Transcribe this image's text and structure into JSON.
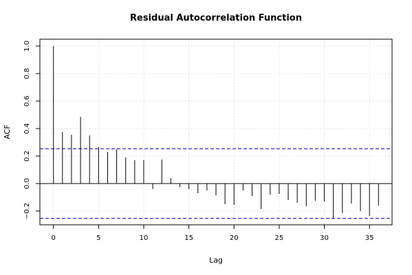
{
  "chart_data": {
    "type": "bar",
    "title": "Residual Autocorrelation Function",
    "xlabel": "Lag",
    "ylabel": "ACF",
    "xlim": [
      -1.5,
      37.5
    ],
    "ylim": [
      -0.3,
      1.05
    ],
    "x_ticks": [
      0,
      5,
      10,
      15,
      20,
      25,
      30,
      35
    ],
    "y_ticks": [
      -0.2,
      0.0,
      0.2,
      0.4,
      0.6,
      0.8,
      1.0
    ],
    "x_tick_labels": [
      "0",
      "5",
      "10",
      "15",
      "20",
      "25",
      "30",
      "35"
    ],
    "y_tick_labels": [
      "−0.2",
      "0.0",
      "0.2",
      "0.4",
      "0.6",
      "0.8",
      "1.0"
    ],
    "grid": true,
    "confidence_bound": 0.253,
    "colors": {
      "bars": "#000000",
      "bounds": "#0000cc",
      "grid": "#d3d3d3",
      "frame": "#000000"
    },
    "lags": [
      0,
      1,
      2,
      3,
      4,
      5,
      6,
      7,
      8,
      9,
      10,
      11,
      12,
      13,
      14,
      15,
      16,
      17,
      18,
      19,
      20,
      21,
      22,
      23,
      24,
      25,
      26,
      27,
      28,
      29,
      30,
      31,
      32,
      33,
      34,
      35,
      36
    ],
    "values": [
      1.0,
      0.375,
      0.355,
      0.485,
      0.35,
      0.265,
      0.23,
      0.25,
      0.19,
      0.17,
      0.17,
      -0.04,
      0.175,
      0.04,
      -0.025,
      -0.04,
      -0.07,
      -0.05,
      -0.085,
      -0.15,
      -0.155,
      -0.05,
      -0.09,
      -0.185,
      -0.08,
      -0.075,
      -0.12,
      -0.14,
      -0.165,
      -0.125,
      -0.13,
      -0.255,
      -0.215,
      -0.145,
      -0.2,
      -0.235,
      -0.16
    ]
  }
}
